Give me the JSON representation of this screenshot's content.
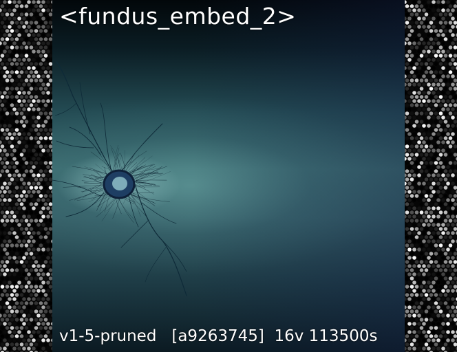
{
  "image": {
    "title": "<fundus_embed_2>",
    "footer": "v1-5-pruned   [a9263745]  16v 113500s",
    "colors": {
      "background_top": "#02070a",
      "teal_mid": "#3c6d70",
      "blue_right": "#2a3f6e",
      "vessel": "#0e2a38"
    }
  }
}
